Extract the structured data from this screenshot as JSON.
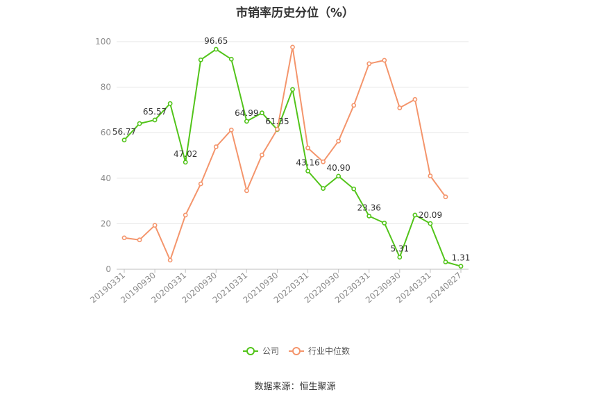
{
  "chart_data": {
    "type": "line",
    "title": "市销率历史分位（%）",
    "xlabel": "",
    "ylabel": "",
    "ylim": [
      0,
      100
    ],
    "yticks": [
      0,
      20,
      40,
      60,
      80,
      100
    ],
    "grid": true,
    "legend_position": "bottom",
    "x": [
      "20190331",
      "20190630",
      "20190930",
      "20191231",
      "20200331",
      "20200630",
      "20200930",
      "20201231",
      "20210331",
      "20210630",
      "20210930",
      "20211231",
      "20220331",
      "20220630",
      "20220930",
      "20221231",
      "20230331",
      "20230630",
      "20230930",
      "20231231",
      "20240331",
      "20240630",
      "20240827"
    ],
    "xtick_labels": [
      "20190331",
      "20190930",
      "20200331",
      "20200930",
      "20210331",
      "20210930",
      "20220331",
      "20220930",
      "20230331",
      "20230930",
      "20240331",
      "20240827"
    ],
    "series": [
      {
        "name": "公司",
        "color": "#52c41a",
        "values": [
          56.77,
          64.0,
          65.57,
          72.8,
          47.02,
          92.0,
          96.65,
          92.3,
          64.99,
          68.7,
          61.35,
          79.0,
          43.16,
          35.5,
          40.9,
          35.3,
          23.36,
          20.3,
          5.31,
          23.8,
          20.09,
          3.2,
          1.31
        ],
        "labels": {
          "0": "56.77",
          "2": "65.57",
          "4": "47.02",
          "6": "96.65",
          "8": "64.99",
          "10": "61.35",
          "12": "43.16",
          "14": "40.90",
          "16": "23.36",
          "18": "5.31",
          "20": "20.09",
          "22": "1.31"
        }
      },
      {
        "name": "行业中位数",
        "color": "#f4956c",
        "values": [
          13.8,
          12.9,
          19.3,
          4.0,
          23.8,
          37.5,
          53.8,
          61.2,
          34.5,
          50.2,
          61.5,
          97.6,
          53.3,
          47.2,
          56.3,
          72.0,
          90.3,
          91.8,
          70.9,
          74.6,
          41.0,
          31.8,
          null
        ]
      }
    ]
  },
  "source": "数据来源：恒生聚源"
}
